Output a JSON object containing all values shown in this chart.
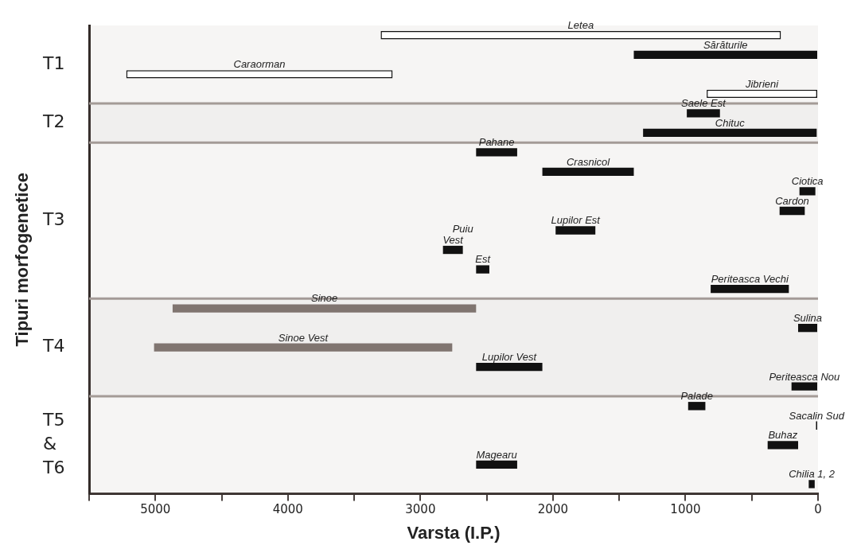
{
  "chart_data": {
    "type": "bar",
    "orientation": "horizontal",
    "xlabel": "Varsta (I.P.)",
    "ylabel": "Tipuri morfogenetice",
    "categories": [
      "Letea",
      "Sărăturile",
      "Caraorman",
      "Jibrieni",
      "Saele Est",
      "Chituc",
      "Pahane",
      "Crasnicol",
      "Ciotica",
      "Cardon",
      "Lupilor Est",
      "Vest",
      "Est",
      "Periteasca Vechi",
      "Sinoe",
      "Sulina",
      "Sinoe Vest",
      "Lupilor Vest",
      "Periteasca Nou",
      "Palade",
      "Sacalin Sud",
      "Buhaz",
      "Magearu",
      "Chilia 1, 2"
    ],
    "base": [
      280,
      0,
      3210,
      0,
      740,
      10,
      2270,
      1390,
      20,
      100,
      1680,
      2680,
      2480,
      220,
      2580,
      0,
      2760,
      2080,
      0,
      850,
      0,
      150,
      2270,
      25
    ],
    "values": [
      3020,
      1390,
      2010,
      840,
      250,
      1310,
      310,
      690,
      120,
      190,
      300,
      150,
      100,
      590,
      2290,
      150,
      2250,
      500,
      200,
      130,
      15,
      230,
      310,
      45
    ],
    "colors": [
      "#ffffff",
      "#111111",
      "#ffffff",
      "#ffffff",
      "#111111",
      "#111111",
      "#111111",
      "#111111",
      "#111111",
      "#111111",
      "#111111",
      "#111111",
      "#111111",
      "#111111",
      "#807570",
      "#111111",
      "#807570",
      "#111111",
      "#111111",
      "#111111",
      "#111111",
      "#111111",
      "#111111",
      "#111111"
    ],
    "xlim": [
      5500,
      0
    ],
    "xticks": [
      {
        "value": 5500,
        "label": null
      },
      5000,
      {
        "value": 4500,
        "label": null
      },
      4000,
      {
        "value": 3500,
        "label": null
      },
      3000,
      {
        "value": 2500,
        "label": null
      },
      2000,
      {
        "value": 1500,
        "label": null
      },
      1000,
      {
        "value": 500,
        "label": null
      },
      0
    ],
    "bands": [
      {
        "axis": "y",
        "from": "Letea",
        "to": "Jibrieni",
        "label": "T1",
        "color": "#a49b97"
      },
      {
        "axis": "y",
        "from": "Saele Est",
        "to": "Chituc",
        "label": "T2",
        "color": "#a49b97"
      },
      {
        "axis": "y",
        "from": "Pahane",
        "to": "Periteasca Vechi",
        "label": "T3",
        "color": "#a49b97"
      },
      {
        "axis": "y",
        "from": "Sinoe",
        "to": "Periteasca Nou",
        "label": "T4",
        "color": "#a49b97"
      },
      {
        "axis": "y",
        "from": "Palade",
        "to": "Chilia 1, 2",
        "label": "T5 & T6",
        "color": "#a49b97"
      }
    ],
    "annotations": [
      {
        "text": "Puiu",
        "x": 2680,
        "y": "Vest"
      }
    ],
    "grid": false,
    "legend": false,
    "tick_labels": "x"
  }
}
